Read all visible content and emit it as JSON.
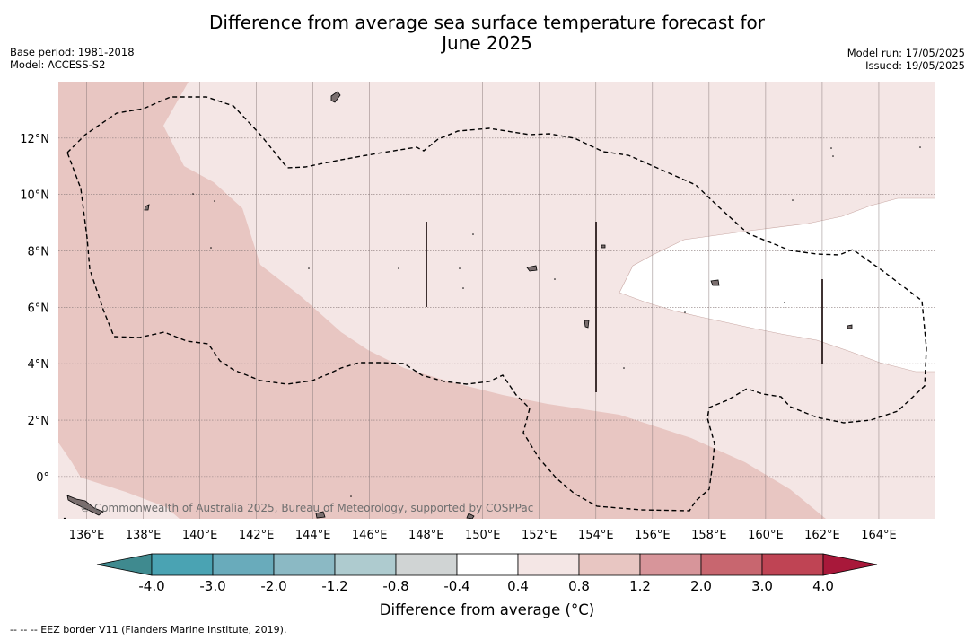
{
  "title": {
    "line1": "Difference from average sea surface temperature forecast for",
    "line2": "June 2025"
  },
  "meta": {
    "base_period": "Base period: 1981-2018",
    "model": "Model: ACCESS-S2",
    "model_run": "Model run: 17/05/2025",
    "issued": "Issued: 19/05/2025"
  },
  "map": {
    "lon_range": [
      135,
      166
    ],
    "lat_range": [
      -1.5,
      14
    ],
    "lon_ticks": [
      "136°E",
      "138°E",
      "140°E",
      "142°E",
      "144°E",
      "146°E",
      "148°E",
      "150°E",
      "152°E",
      "154°E",
      "156°E",
      "158°E",
      "160°E",
      "162°E",
      "164°E"
    ],
    "lat_ticks": [
      "12°N",
      "10°N",
      "8°N",
      "6°N",
      "4°N",
      "2°N",
      "0°"
    ],
    "credit": "© Commonwealth of Australia 2025, Bureau of Meteorology, supported by COSPPac",
    "colors": {
      "band_0_4_to_0_8": "#f4e6e5",
      "band_0_8_to_1_2": "#e8c6c2",
      "band_neutral": "#ffffff"
    }
  },
  "colorbar": {
    "tick_labels": [
      "-4.0",
      "-3.0",
      "-2.0",
      "-1.2",
      "-0.8",
      "-0.4",
      "0.4",
      "0.8",
      "1.2",
      "2.0",
      "3.0",
      "4.0"
    ],
    "colors": [
      "#3f8a8f",
      "#4aa3b3",
      "#69abbb",
      "#8bb9c4",
      "#aecbcf",
      "#d0d4d4",
      "#ffffff",
      "#f4e6e5",
      "#e8c6c2",
      "#d7959a",
      "#c8666f",
      "#bf4454",
      "#a8183a"
    ],
    "label": "Difference from average (°C)"
  },
  "footnote": "--  --  -- EEZ border V11 (Flanders Marine Institute, 2019)."
}
